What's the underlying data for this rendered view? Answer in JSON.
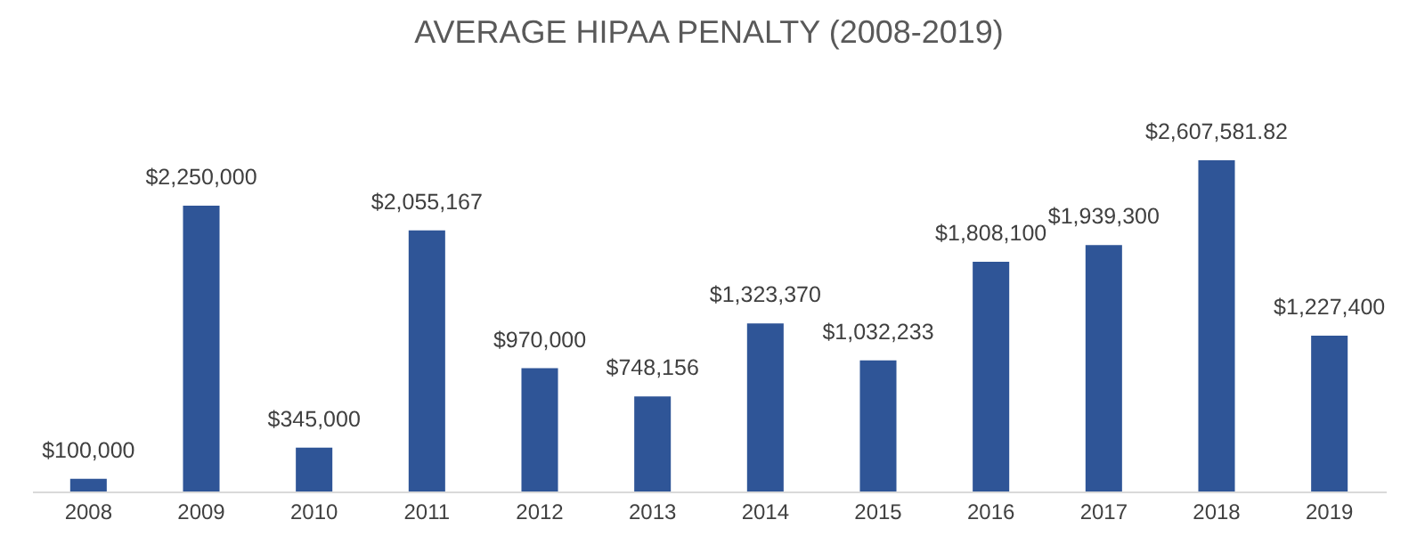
{
  "chart_data": {
    "type": "bar",
    "title": "AVERAGE HIPAA PENALTY (2008-2019)",
    "categories": [
      "2008",
      "2009",
      "2010",
      "2011",
      "2012",
      "2013",
      "2014",
      "2015",
      "2016",
      "2017",
      "2018",
      "2019"
    ],
    "values": [
      100000,
      2250000,
      345000,
      2055167,
      970000,
      748156,
      1323370,
      1032233,
      1808100,
      1939300,
      2607581.82,
      1227400
    ],
    "value_labels": [
      "$100,000",
      "$2,250,000",
      "$345,000",
      "$2,055,167",
      "$970,000",
      "$748,156",
      "$1,323,370",
      "$1,032,233",
      "$1,808,100",
      "$1,939,300",
      "$2,607,581.82",
      "$1,227,400"
    ],
    "color": "#2f5597",
    "tick_labels": "x"
  }
}
